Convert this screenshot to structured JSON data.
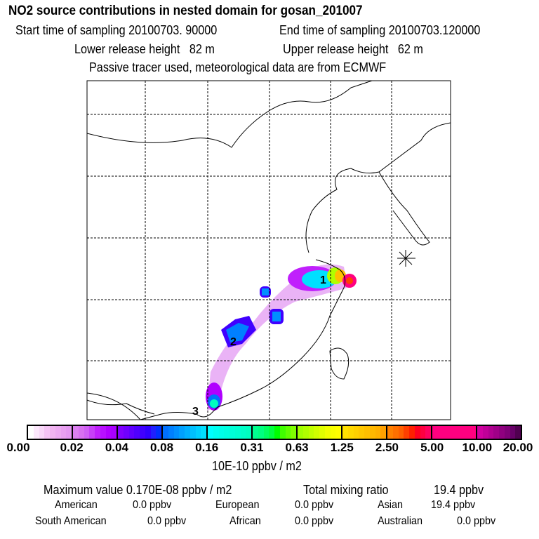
{
  "header": {
    "title": "NO2 source contributions in nested domain for gosan_201007",
    "start": "Start time of sampling 20100703. 90000",
    "end": "End time of sampling 20100703.120000",
    "lower": "Lower release height   82 m",
    "upper": "Upper release height   62 m",
    "note": "Passive tracer used, meteorological data are from ECMWF"
  },
  "chart_data": {
    "type": "heatmap",
    "title": "NO2 source contributions in nested domain for gosan_201007",
    "colorbar": {
      "ticks": [
        "0.00",
        "0.02",
        "0.04",
        "0.08",
        "0.16",
        "0.31",
        "0.63",
        "1.25",
        "2.50",
        "5.00",
        "10.00",
        "20.00"
      ],
      "unit": "10E-10 ppbv / m2",
      "colors": [
        [
          "#ffffff",
          "#fce8fc",
          "#f8d8f8",
          "#f4c4f4",
          "#f0b4f0",
          "#ecaaf0",
          "#e8a0f0",
          "#e498f0"
        ],
        [
          "#dc80f0",
          "#d870f0",
          "#d060f4",
          "#c840f8",
          "#c020fc",
          "#b810ff",
          "#b000ff",
          "#a800ff"
        ],
        [
          "#8000ff",
          "#7000ff",
          "#6000ff",
          "#5000ff",
          "#4000ff",
          "#3000ff",
          "#2020ff",
          "#0030ff"
        ],
        [
          "#0070ff",
          "#0080ff",
          "#0090ff",
          "#00a0ff",
          "#00b0ff",
          "#00c0ff",
          "#00d0ff",
          "#00e0ff"
        ],
        [
          "#00ffff",
          "#00fff0",
          "#00ffe8",
          "#00ffe0",
          "#00ffd8",
          "#00ffd0",
          "#00ffc8",
          "#00ffc0"
        ],
        [
          "#00ff90",
          "#00ff80",
          "#00ff60",
          "#00ff40",
          "#00ff00",
          "#40ff00",
          "#60ff00",
          "#80ff00"
        ],
        [
          "#a0ff00",
          "#b0ff00",
          "#c0ff00",
          "#d0ff00",
          "#e0ff00",
          "#f0ff00",
          "#f8ff00",
          "#ffff00"
        ],
        [
          "#ffe000",
          "#ffd800",
          "#ffd000",
          "#ffc800",
          "#ffc000",
          "#ffb800",
          "#ffb000",
          "#ffa000"
        ],
        [
          "#ff8000",
          "#ff7000",
          "#ff6000",
          "#ff4000",
          "#ff2000",
          "#ff0020",
          "#ff0040",
          "#ff0060"
        ],
        [
          "#ff0080",
          "#ff0080",
          "#ff0080",
          "#ff0080",
          "#ff0080",
          "#ff0080",
          "#ff0080",
          "#ff0080"
        ],
        [
          "#d000a0",
          "#c00098",
          "#b00090",
          "#a00088",
          "#900080",
          "#800078",
          "#680068",
          "#500050"
        ]
      ]
    },
    "source_labels": [
      "1",
      "2",
      "3"
    ]
  },
  "stats": {
    "max": "Maximum value  0.170E-08 ppbv / m2",
    "total_label": "Total mixing ratio",
    "total": "19.4 ppbv",
    "regions": [
      [
        "American",
        "0.0 ppbv"
      ],
      [
        "European",
        "0.0 ppbv"
      ],
      [
        "Asian",
        "19.4 ppbv"
      ],
      [
        "South American",
        "0.0 ppbv"
      ],
      [
        "African",
        "0.0 ppbv"
      ],
      [
        "Australian",
        "0.0 ppbv"
      ]
    ]
  }
}
